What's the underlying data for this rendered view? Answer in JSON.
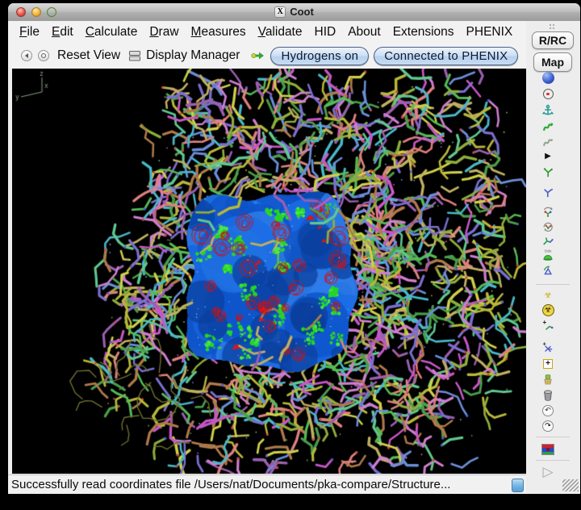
{
  "window": {
    "title": "Coot",
    "icon_glyph": "X",
    "traffic_lights": [
      "close",
      "minimize",
      "zoom"
    ]
  },
  "menu": {
    "items": [
      {
        "label": "File",
        "mnemonic": true
      },
      {
        "label": "Edit",
        "mnemonic": true
      },
      {
        "label": "Calculate",
        "mnemonic": true
      },
      {
        "label": "Draw",
        "mnemonic": true
      },
      {
        "label": "Measures",
        "mnemonic": true
      },
      {
        "label": "Validate",
        "mnemonic": true
      },
      {
        "label": "HID",
        "mnemonic": false
      },
      {
        "label": "About",
        "mnemonic": false
      },
      {
        "label": "Extensions",
        "mnemonic": false
      },
      {
        "label": "PHENIX",
        "mnemonic": false
      }
    ]
  },
  "toolbar": {
    "reset_view_label": "Reset View",
    "display_manager_label": "Display Manager",
    "hydrogens_button": "Hydrogens on",
    "phenix_button": "Connected to PHENIX"
  },
  "right_toolbar": {
    "rrc_button": "R/RC",
    "map_button": "Map",
    "side_label": "Side",
    "icons": [
      "globe-icon",
      "target-icon",
      "anchor-icon",
      "real-space-refine-icon",
      "regularize-icon",
      "rigid-body-icon",
      "auto-fit-rotamer-icon",
      "rotamers-icon",
      "rotate-zone-icon",
      "rotate-translate-icon",
      "flip-peptide-icon",
      "side-chain-dome-icon",
      "flip-180-icon",
      "small-hazard-icon",
      "radiation-icon",
      "add-atom-icon",
      "add-terminal-residue-icon",
      "add-alt-conf-icon",
      "mutate-icon",
      "delete-icon",
      "undo-icon",
      "redo-icon",
      "flag-icon",
      "run-icon"
    ]
  },
  "statusbar": {
    "message": "Successfully read coordinates file /Users/nat/Documents/pka-compare/Structure..."
  },
  "viewport": {
    "axes_labels": [
      "z",
      "y",
      "x"
    ],
    "background": "#000000",
    "map_base": "#0b46ae",
    "map_shades": [
      "#1663dd",
      "#1a6ce6",
      "#0e55cb",
      "#2e7ce9",
      "#0b47ad",
      "#2071e2",
      "#1258c9"
    ],
    "map_shadow": "#0a3e9c",
    "diff_positive": "#25d625",
    "diff_positive_alt": "#4ce83e",
    "diff_negative": "#cf1212",
    "diff_negative_solid": "#e01414",
    "axes_color": "#87a487",
    "thin_stick": "#6f7030",
    "tip_red": "#d84040",
    "tip_blue": "#5055dd",
    "stick_palette": [
      "#8fae3c",
      "#c757c7",
      "#55bb55",
      "#49b8c8",
      "#b07a4a",
      "#7a6fd0",
      "#d0d04a",
      "#e08080",
      "#4a9e4a",
      "#c0b060",
      "#9a5fb0",
      "#60c890",
      "#b8b83a",
      "#cf7fcf",
      "#6a8fd8"
    ]
  }
}
